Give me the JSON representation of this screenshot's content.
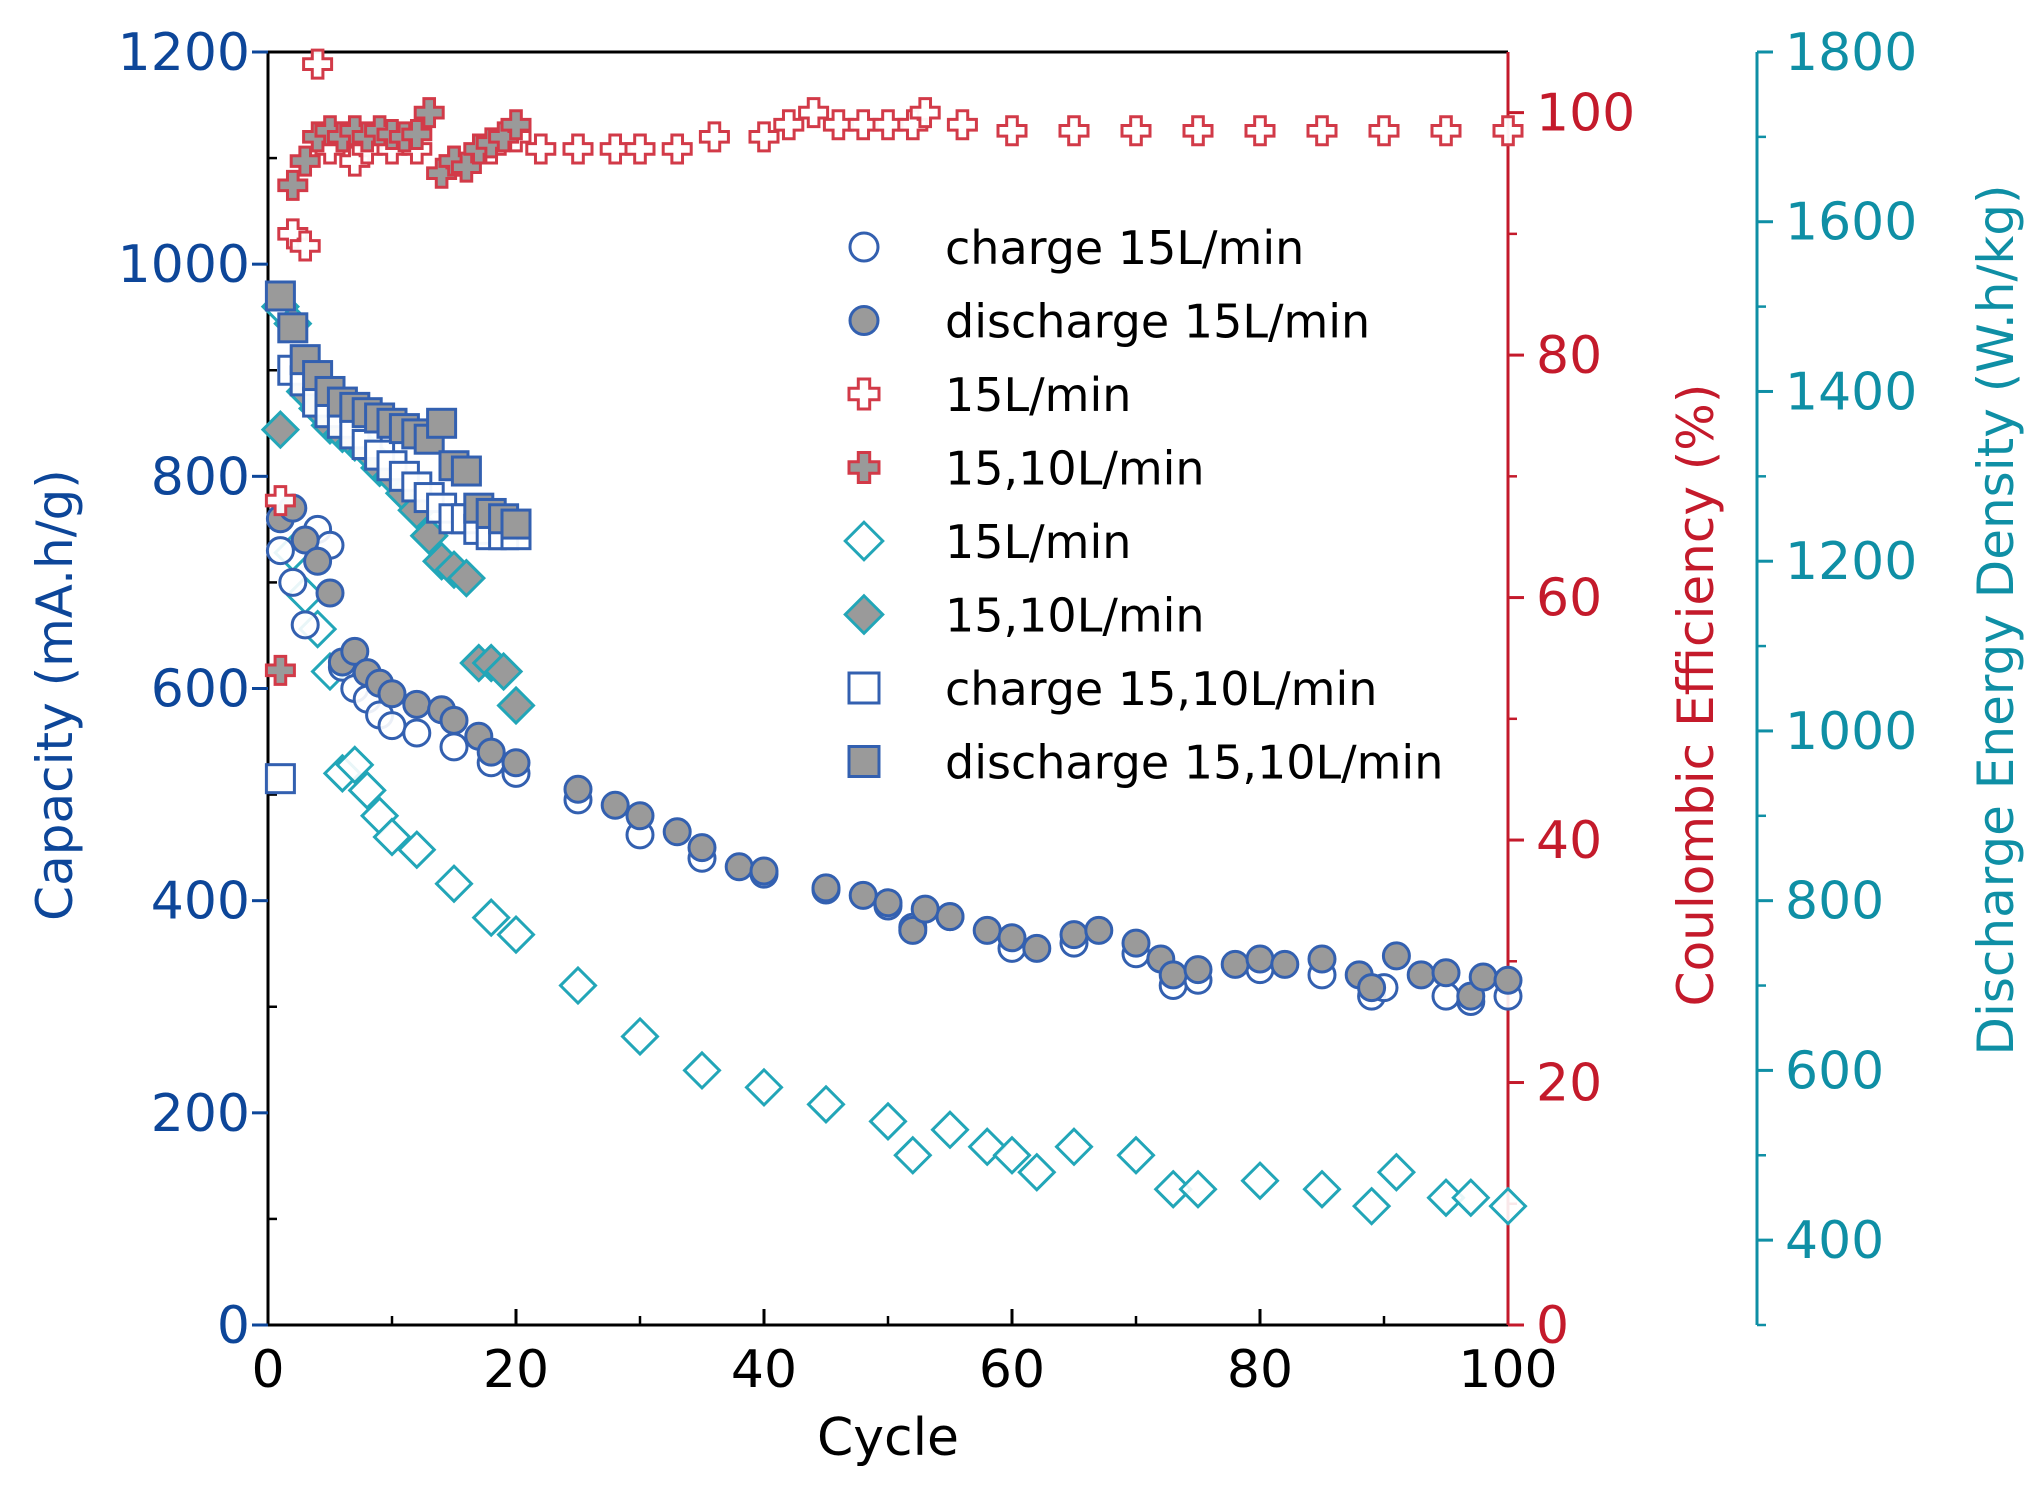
{
  "colors": {
    "capacity_axis": "#0d4699",
    "ce_axis": "#c41a2b",
    "energy_axis": "#0f8fa5",
    "charge_marker": "#3360b0",
    "discharge_fill": "#9a9a9a",
    "ce_marker": "#d23a48",
    "energy_marker": "#22a6b8"
  },
  "chart_data": {
    "type": "scatter",
    "xlabel": "Cycle",
    "xlim": [
      0,
      100
    ],
    "x_ticks": [
      "0",
      "20",
      "40",
      "60",
      "80",
      "100"
    ],
    "y_left": {
      "label": "Capacity (mA.h/g)",
      "lim": [
        0,
        1200
      ],
      "ticks": [
        "0",
        "200",
        "400",
        "600",
        "800",
        "1000",
        "1200"
      ]
    },
    "y_right1": {
      "label": "Coulombic Efficiency (%)",
      "lim": [
        0,
        105
      ],
      "ticks": [
        "0",
        "20",
        "40",
        "60",
        "80",
        "100"
      ]
    },
    "y_right2": {
      "label": "Discharge Energy Density (W.h/kg)",
      "lim": [
        300,
        1800
      ],
      "ticks": [
        "400",
        "600",
        "800",
        "1000",
        "1200",
        "1400",
        "1600",
        "1800"
      ]
    },
    "legend_position": "upper-center",
    "series": [
      {
        "name": "charge 15L/min",
        "axis": "left",
        "marker": "circle-open",
        "x": [
          1,
          2,
          3,
          4,
          5,
          6,
          7,
          8,
          9,
          10,
          12,
          15,
          18,
          20,
          25,
          30,
          35,
          40,
          45,
          50,
          52,
          55,
          60,
          65,
          70,
          73,
          75,
          80,
          85,
          89,
          90,
          95,
          97,
          100
        ],
        "y": [
          730,
          700,
          660,
          750,
          735,
          620,
          600,
          590,
          575,
          565,
          558,
          545,
          530,
          520,
          495,
          462,
          440,
          425,
          410,
          395,
          375,
          385,
          355,
          360,
          350,
          320,
          325,
          335,
          330,
          310,
          318,
          310,
          305,
          310
        ]
      },
      {
        "name": "discharge 15L/min",
        "axis": "left",
        "marker": "circle-filled",
        "x": [
          1,
          2,
          3,
          4,
          5,
          6,
          7,
          8,
          9,
          10,
          12,
          14,
          15,
          17,
          18,
          20,
          25,
          28,
          30,
          33,
          35,
          38,
          40,
          45,
          48,
          50,
          52,
          53,
          55,
          58,
          60,
          62,
          65,
          67,
          70,
          72,
          73,
          75,
          78,
          80,
          82,
          85,
          88,
          89,
          91,
          93,
          95,
          97,
          98,
          100
        ],
        "y": [
          760,
          770,
          740,
          720,
          690,
          625,
          635,
          615,
          605,
          595,
          585,
          580,
          570,
          555,
          540,
          530,
          505,
          490,
          480,
          465,
          450,
          432,
          428,
          412,
          405,
          398,
          372,
          392,
          385,
          372,
          365,
          355,
          368,
          372,
          360,
          345,
          330,
          335,
          340,
          345,
          340,
          345,
          330,
          318,
          348,
          330,
          332,
          310,
          328,
          325
        ]
      },
      {
        "name": "15L/min",
        "axis": "right1",
        "marker": "cross-open",
        "x": [
          1,
          2,
          3,
          4,
          5,
          6,
          7,
          8,
          10,
          12,
          15,
          18,
          20,
          22,
          25,
          28,
          30,
          33,
          36,
          40,
          42,
          44,
          46,
          48,
          50,
          52,
          53,
          56,
          60,
          65,
          70,
          75,
          80,
          85,
          90,
          95,
          100
        ],
        "y": [
          68,
          90,
          89,
          104,
          97,
          98,
          96,
          97,
          97,
          97,
          96,
          97,
          98,
          97,
          97,
          97,
          97,
          97,
          98,
          98,
          99,
          100,
          99,
          99,
          99,
          99,
          100,
          99,
          98.5,
          98.5,
          98.5,
          98.5,
          98.5,
          98.5,
          98.5,
          98.5,
          98.5
        ]
      },
      {
        "name": "15,10L/min",
        "axis": "right1",
        "marker": "cross-filled",
        "x": [
          1,
          2,
          3,
          4,
          5,
          6,
          7,
          8,
          9,
          10,
          11,
          12,
          13,
          14,
          15,
          16,
          17,
          18,
          19,
          20
        ],
        "y": [
          54,
          94,
          96,
          98,
          98.5,
          98,
          98.5,
          98,
          98.5,
          98.2,
          98,
          98.2,
          100,
          95,
          96,
          95.5,
          97,
          97.5,
          98,
          99
        ]
      },
      {
        "name": "15L/min",
        "axis": "right2",
        "marker": "diamond-open",
        "x": [
          1,
          2,
          3,
          4,
          5,
          6,
          7,
          8,
          9,
          10,
          12,
          15,
          18,
          20,
          25,
          30,
          35,
          40,
          45,
          50,
          52,
          55,
          58,
          60,
          62,
          65,
          70,
          73,
          75,
          80,
          85,
          89,
          91,
          95,
          97,
          100
        ],
        "y": [
          1500,
          1210,
          1160,
          1120,
          1070,
          950,
          960,
          930,
          900,
          875,
          860,
          820,
          780,
          760,
          700,
          640,
          600,
          580,
          560,
          540,
          500,
          530,
          510,
          500,
          480,
          510,
          500,
          460,
          460,
          470,
          460,
          440,
          480,
          450,
          450,
          440
        ]
      },
      {
        "name": "15,10L/min",
        "axis": "right2",
        "marker": "diamond-filled",
        "x": [
          1,
          2,
          3,
          4,
          5,
          6,
          7,
          8,
          9,
          10,
          11,
          12,
          13,
          14,
          15,
          16,
          17,
          18,
          19,
          20
        ],
        "y": [
          1355,
          1480,
          1400,
          1380,
          1360,
          1350,
          1340,
          1330,
          1310,
          1300,
          1280,
          1260,
          1230,
          1200,
          1190,
          1180,
          1080,
          1080,
          1070,
          1030
        ]
      },
      {
        "name": "charge 15,10L/min",
        "axis": "left",
        "marker": "square-open",
        "x": [
          1,
          2,
          3,
          4,
          5,
          6,
          7,
          8,
          9,
          10,
          11,
          12,
          13,
          14,
          15,
          16,
          17,
          18,
          19,
          20
        ],
        "y": [
          515,
          900,
          890,
          870,
          860,
          850,
          840,
          830,
          820,
          810,
          800,
          790,
          780,
          770,
          760,
          760,
          750,
          745,
          745,
          745
        ]
      },
      {
        "name": "discharge 15,10L/min",
        "axis": "left",
        "marker": "square-filled",
        "x": [
          1,
          2,
          3,
          4,
          5,
          6,
          7,
          8,
          9,
          10,
          11,
          12,
          13,
          14,
          15,
          16,
          17,
          18,
          19,
          20
        ],
        "y": [
          970,
          940,
          910,
          895,
          880,
          870,
          865,
          860,
          855,
          850,
          845,
          840,
          835,
          850,
          810,
          805,
          770,
          765,
          760,
          755
        ]
      }
    ]
  }
}
